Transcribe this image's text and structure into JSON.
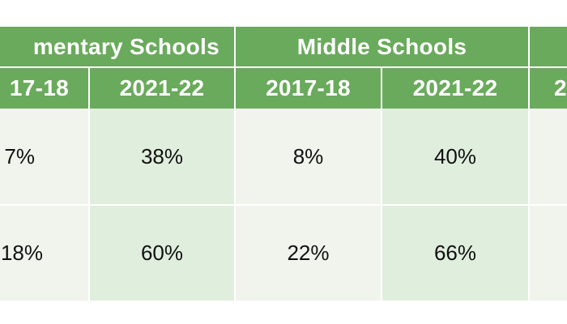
{
  "table": {
    "groups": [
      {
        "label": "mentary Schools"
      },
      {
        "label": "Middle Schools"
      },
      {
        "label": ""
      }
    ],
    "years": [
      "17-18",
      "2021-22",
      "2017-18",
      "2021-22",
      "2"
    ],
    "rows": [
      [
        "7%",
        "38%",
        "8%",
        "40%",
        ""
      ],
      [
        "18%",
        "60%",
        "22%",
        "66%",
        ""
      ]
    ],
    "colors": {
      "header_green": "#6aaa5c",
      "cell_light": "#f0f4ed",
      "cell_dark": "#e0eedd"
    }
  }
}
